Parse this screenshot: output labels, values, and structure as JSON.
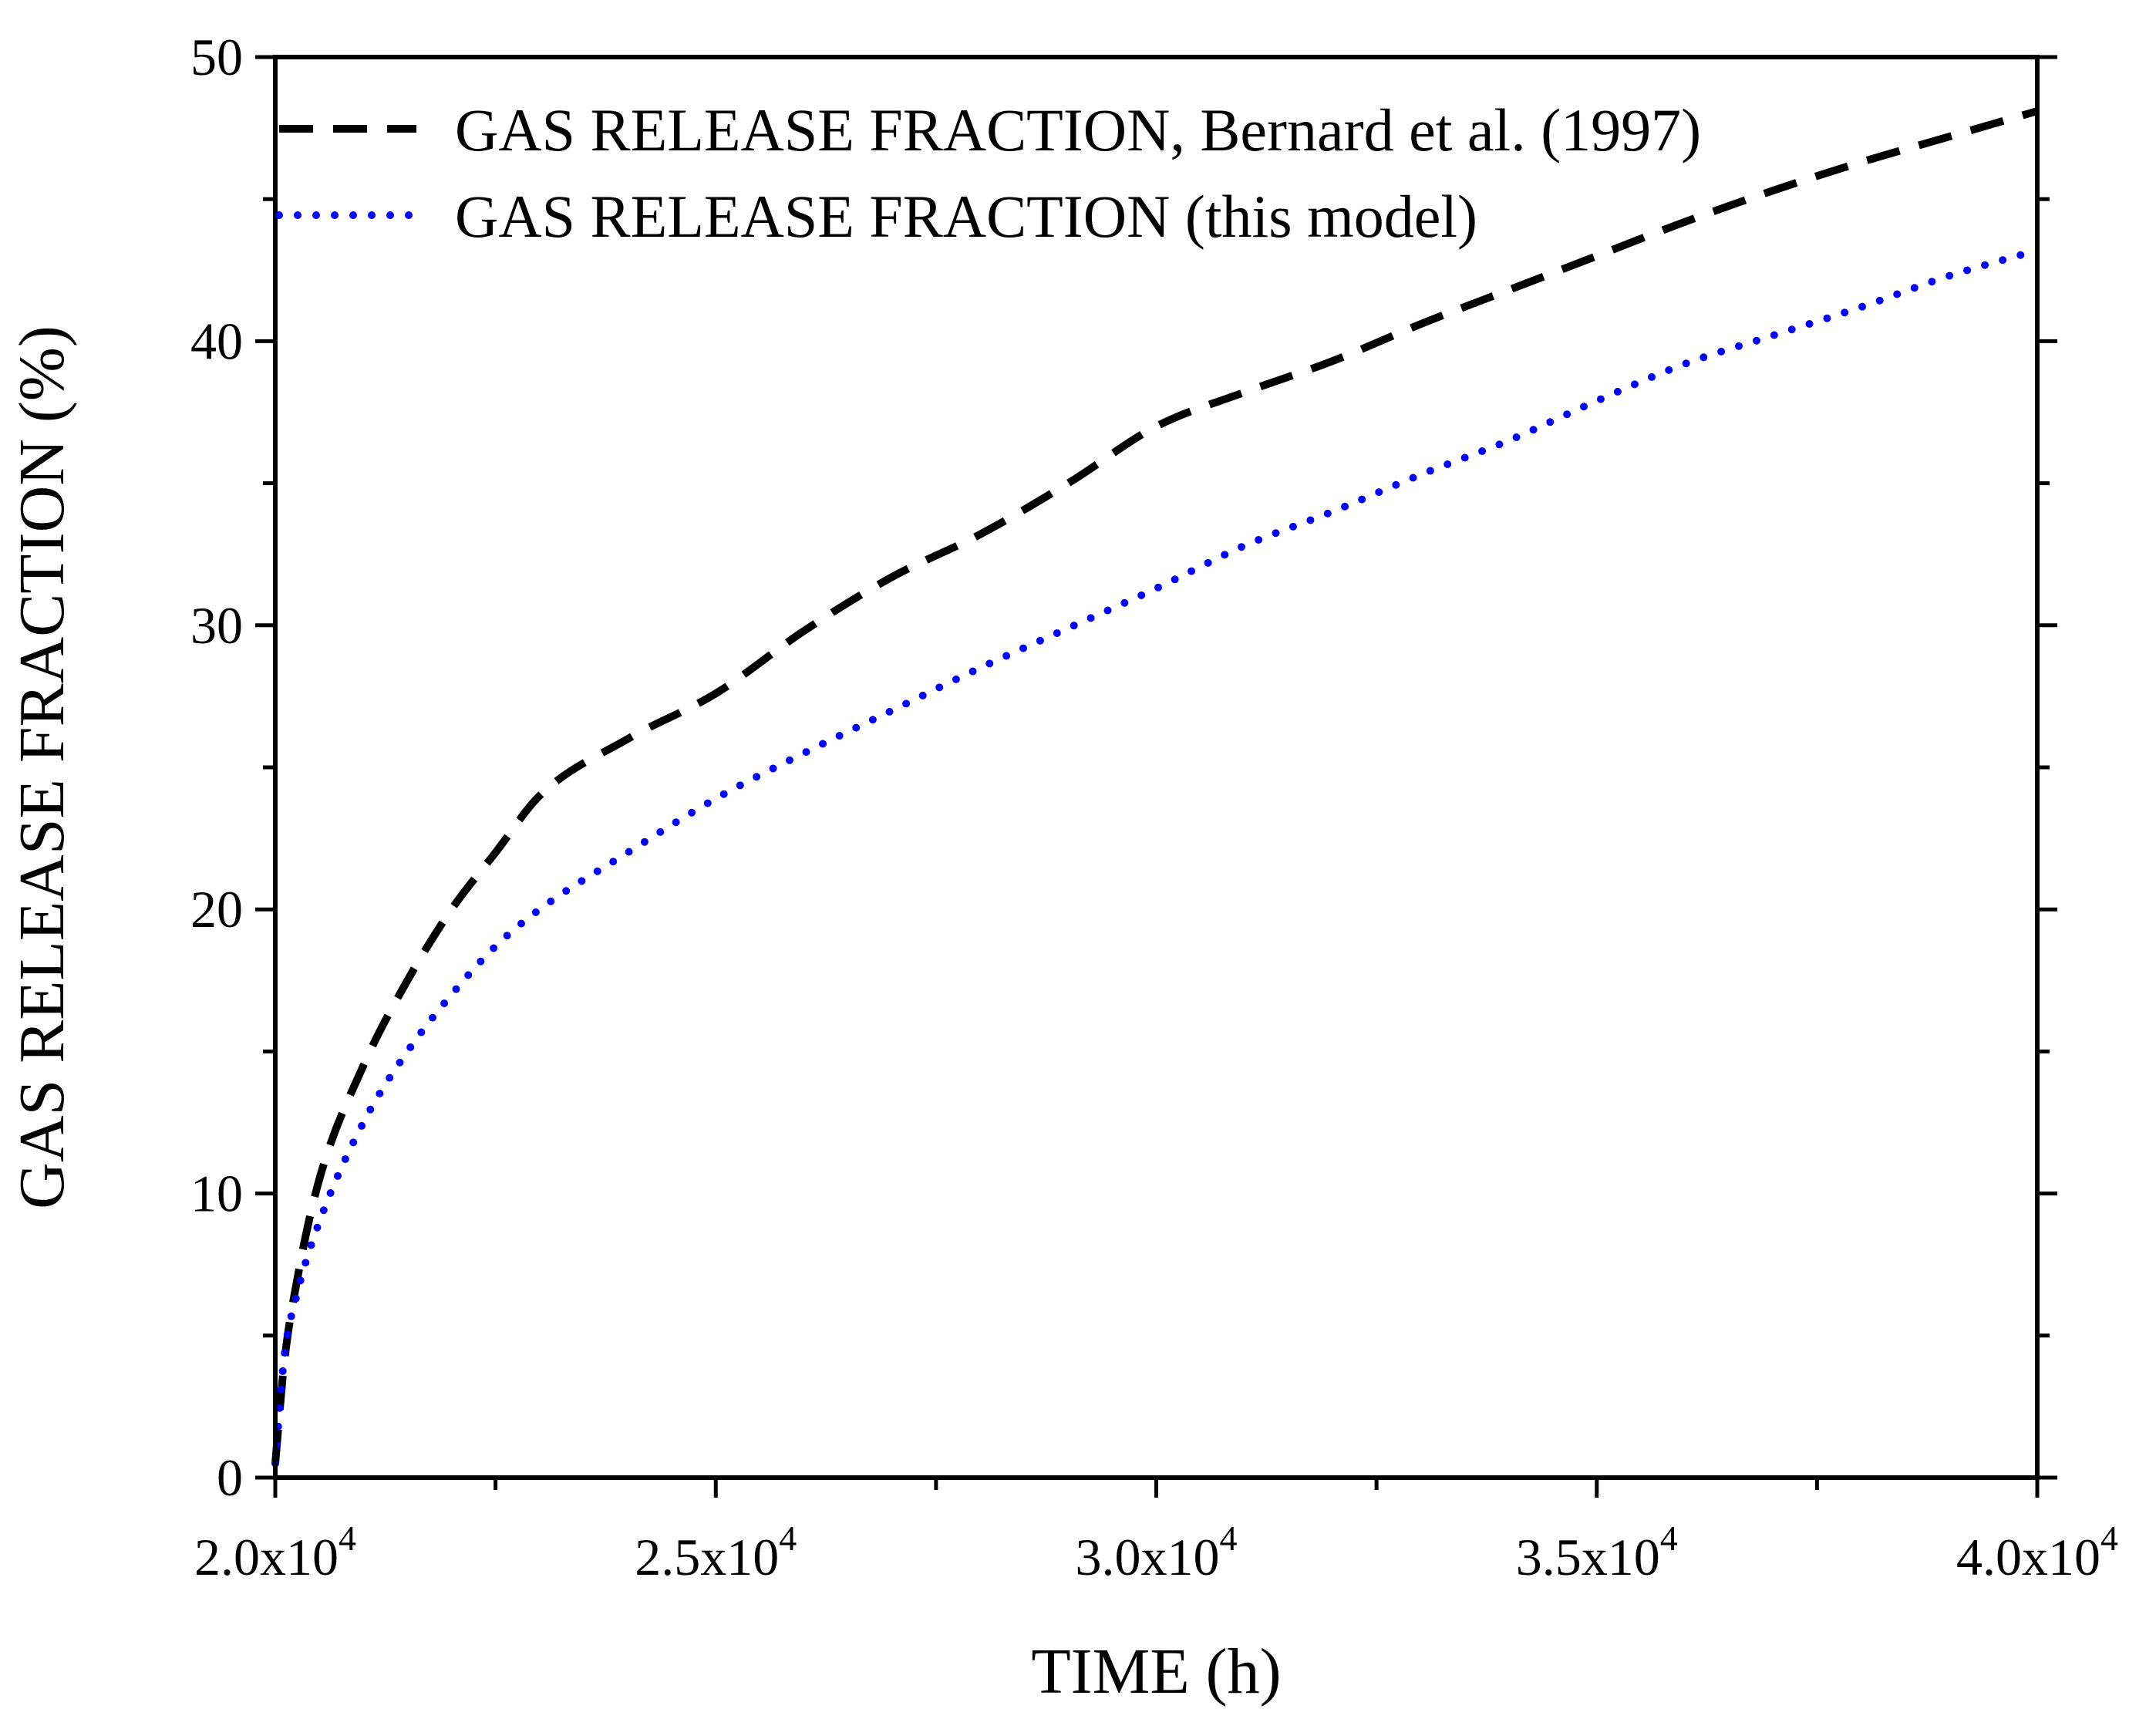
{
  "chart_data": {
    "type": "line",
    "title": "",
    "xlabel": "TIME (h)",
    "ylabel": "GAS RELEASE FRACTION (%)",
    "xlim": [
      20000,
      40000
    ],
    "ylim": [
      0,
      50
    ],
    "x_ticks": [
      {
        "value": 20000,
        "mantissa": "2.0x10",
        "exponent": "4"
      },
      {
        "value": 25000,
        "mantissa": "2.5x10",
        "exponent": "4"
      },
      {
        "value": 30000,
        "mantissa": "3.0x10",
        "exponent": "4"
      },
      {
        "value": 35000,
        "mantissa": "3.5x10",
        "exponent": "4"
      },
      {
        "value": 40000,
        "mantissa": "4.0x10",
        "exponent": "4"
      }
    ],
    "x_minor_ticks": [
      22500,
      27500,
      32500,
      37500
    ],
    "y_ticks": [
      {
        "value": 0,
        "label": "0"
      },
      {
        "value": 10,
        "label": "10"
      },
      {
        "value": 20,
        "label": "20"
      },
      {
        "value": 30,
        "label": "30"
      },
      {
        "value": 40,
        "label": "40"
      },
      {
        "value": 50,
        "label": "50"
      }
    ],
    "y_minor_ticks": [
      5,
      15,
      25,
      35,
      45
    ],
    "grid": false,
    "legend_position": "top-left",
    "series": [
      {
        "name": "GAS RELEASE FRACTION, Bernard et al. (1997)",
        "style": "dashed",
        "color": "#000000",
        "x": [
          20000,
          20100,
          20250,
          20500,
          21000,
          21500,
          22000,
          22500,
          23000,
          24000,
          25000,
          26000,
          27000,
          28000,
          29000,
          30000,
          31000,
          32000,
          33000,
          34000,
          35000,
          36000,
          37000,
          38000,
          39000,
          40000
        ],
        "y": [
          0.5,
          4.0,
          7.0,
          10.5,
          14.5,
          17.5,
          20.0,
          22.0,
          24.0,
          26.0,
          27.6,
          29.8,
          31.7,
          33.2,
          35.0,
          37.0,
          38.2,
          39.3,
          40.6,
          41.8,
          43.0,
          44.2,
          45.3,
          46.3,
          47.2,
          48.1
        ]
      },
      {
        "name": "GAS RELEASE FRACTION (this model)",
        "style": "dotted",
        "color": "#0000ff",
        "x": [
          20000,
          20100,
          20250,
          20500,
          21000,
          21500,
          22000,
          22500,
          23000,
          24000,
          25000,
          26000,
          27000,
          28000,
          29000,
          30000,
          31000,
          32000,
          33000,
          34000,
          35000,
          36000,
          37000,
          38000,
          39000,
          40000
        ],
        "y": [
          0.5,
          4.2,
          6.5,
          9.0,
          12.5,
          15.0,
          17.0,
          18.7,
          20.0,
          22.0,
          23.9,
          25.5,
          27.0,
          28.5,
          29.9,
          31.3,
          32.8,
          34.0,
          35.3,
          36.5,
          37.9,
          39.2,
          40.2,
          41.2,
          42.3,
          43.2
        ]
      }
    ]
  }
}
